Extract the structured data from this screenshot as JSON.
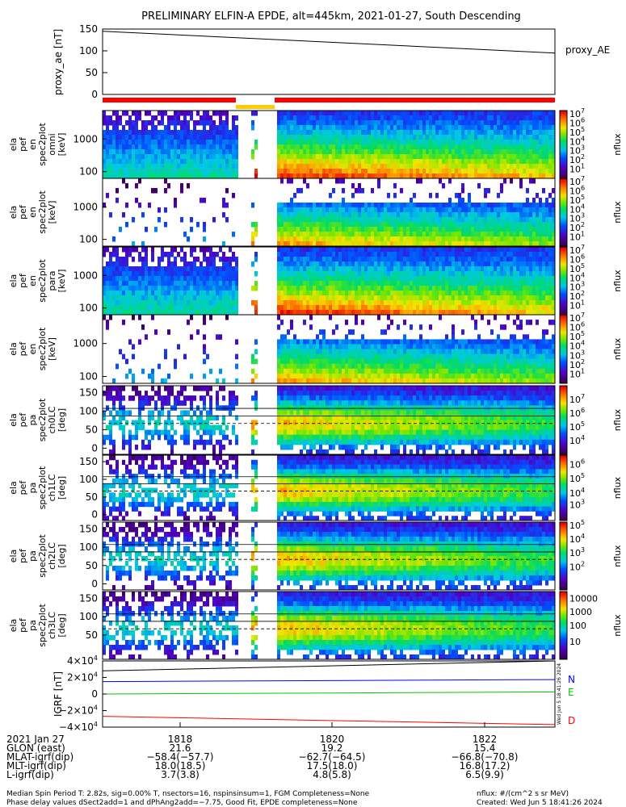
{
  "title": "PRELIMINARY ELFIN-A EPDE, alt=445km, 2021-01-27, South Descending",
  "chart_data": [
    {
      "type": "line",
      "ylabel": "proxy_ae [nT]",
      "yticks": [
        "150",
        "100",
        "50",
        "0"
      ],
      "ylim": [
        0,
        150
      ],
      "series": [
        {
          "name": "proxy_AE",
          "x": [
            0,
            1
          ],
          "values": [
            145,
            95
          ]
        }
      ]
    },
    {
      "type": "heatmap",
      "ylabel_lines": [
        "ela",
        "pef",
        "en",
        "spec2plot",
        "omni",
        "[keV]"
      ],
      "yticks": [
        "1000",
        "100"
      ],
      "colorbar": {
        "label": "nflux",
        "ticks": [
          {
            "b": "10",
            "e": "7"
          },
          {
            "b": "10",
            "e": "6"
          },
          {
            "b": "10",
            "e": "5"
          },
          {
            "b": "10",
            "e": "4"
          },
          {
            "b": "10",
            "e": "3"
          },
          {
            "b": "10",
            "e": "2"
          },
          {
            "b": "10",
            "e": "1"
          }
        ]
      }
    },
    {
      "type": "heatmap",
      "ylabel_lines": [
        "ela",
        "pef",
        "en",
        "spec2plot",
        "[keV]"
      ],
      "yticks": [
        "1000",
        "100"
      ],
      "colorbar": {
        "label": "nflux",
        "ticks": [
          {
            "b": "10",
            "e": "7"
          },
          {
            "b": "10",
            "e": "6"
          },
          {
            "b": "10",
            "e": "5"
          },
          {
            "b": "10",
            "e": "4"
          },
          {
            "b": "10",
            "e": "3"
          },
          {
            "b": "10",
            "e": "2"
          },
          {
            "b": "10",
            "e": "1"
          }
        ]
      }
    },
    {
      "type": "heatmap",
      "ylabel_lines": [
        "ela",
        "pef",
        "en",
        "spec2plot",
        "para",
        "[keV]"
      ],
      "yticks": [
        "1000",
        "100"
      ],
      "colorbar": {
        "label": "nflux",
        "ticks": [
          {
            "b": "10",
            "e": "7"
          },
          {
            "b": "10",
            "e": "6"
          },
          {
            "b": "10",
            "e": "5"
          },
          {
            "b": "10",
            "e": "4"
          },
          {
            "b": "10",
            "e": "3"
          },
          {
            "b": "10",
            "e": "2"
          },
          {
            "b": "10",
            "e": "1"
          }
        ]
      }
    },
    {
      "type": "heatmap",
      "ylabel_lines": [
        "ela",
        "pef",
        "en",
        "spec2plot",
        "[keV]"
      ],
      "yticks": [
        "1000",
        "100"
      ],
      "colorbar": {
        "label": "nflux",
        "ticks": [
          {
            "b": "10",
            "e": "7"
          },
          {
            "b": "10",
            "e": "6"
          },
          {
            "b": "10",
            "e": "5"
          },
          {
            "b": "10",
            "e": "4"
          },
          {
            "b": "10",
            "e": "3"
          },
          {
            "b": "10",
            "e": "2"
          },
          {
            "b": "10",
            "e": "1"
          }
        ]
      }
    },
    {
      "type": "heatmap",
      "ylabel_lines": [
        "ela",
        "pef",
        "pa",
        "spec2plot",
        "ch0LC",
        "[deg]"
      ],
      "yticks": [
        "150",
        "100",
        "50",
        "0"
      ],
      "colorbar": {
        "label": "nflux",
        "ticks": [
          {
            "b": "10",
            "e": "7"
          },
          {
            "b": "10",
            "e": "6"
          },
          {
            "b": "10",
            "e": "5"
          },
          {
            "b": "10",
            "e": "4"
          }
        ]
      }
    },
    {
      "type": "heatmap",
      "ylabel_lines": [
        "ela",
        "pef",
        "pa",
        "spec2plot",
        "ch1LC",
        "[deg]"
      ],
      "yticks": [
        "150",
        "100",
        "50",
        "0"
      ],
      "colorbar": {
        "label": "nflux",
        "ticks": [
          {
            "b": "10",
            "e": "6"
          },
          {
            "b": "10",
            "e": "5"
          },
          {
            "b": "10",
            "e": "4"
          },
          {
            "b": "10",
            "e": "3"
          }
        ]
      }
    },
    {
      "type": "heatmap",
      "ylabel_lines": [
        "ela",
        "pef",
        "pa",
        "spec2plot",
        "ch2LC",
        "[deg]"
      ],
      "yticks": [
        "150",
        "100",
        "50",
        "0"
      ],
      "colorbar": {
        "label": "nflux",
        "ticks": [
          {
            "b": "10",
            "e": "5"
          },
          {
            "b": "10",
            "e": "4"
          },
          {
            "b": "10",
            "e": "3"
          },
          {
            "b": "10",
            "e": "2"
          }
        ]
      }
    },
    {
      "type": "heatmap",
      "ylabel_lines": [
        "ela",
        "pef",
        "pa",
        "spec2plot",
        "ch3LC",
        "[deg]"
      ],
      "yticks": [
        "150",
        "100",
        "50"
      ],
      "colorbar": {
        "label": "nflux",
        "ticks": [
          {
            "b": "10000",
            "e": ""
          },
          {
            "b": "1000",
            "e": ""
          },
          {
            "b": "100",
            "e": ""
          },
          {
            "b": "10",
            "e": ""
          }
        ]
      }
    },
    {
      "type": "line",
      "ylabel": "IGRF [nT]",
      "yticks": [
        {
          "b": "4×10",
          "e": "4"
        },
        {
          "b": "2×10",
          "e": "4"
        },
        {
          "b": "0",
          "e": ""
        },
        {
          "b": "−2×10",
          "e": "4"
        },
        {
          "b": "−4×10",
          "e": "4"
        }
      ],
      "ylim": [
        -40000,
        40000
      ],
      "side_text": "Wed Jun  5 18:41:26 2024",
      "series": [
        {
          "name": "N",
          "color": "#0000ff",
          "x": [
            0,
            1
          ],
          "values": [
            15000,
            17500
          ]
        },
        {
          "name": "E",
          "color": "#00cc00",
          "x": [
            0,
            1
          ],
          "values": [
            0,
            2500
          ]
        },
        {
          "name": "D",
          "color": "#ff0000",
          "x": [
            0,
            1
          ],
          "values": [
            -27000,
            -37000
          ]
        },
        {
          "name": "",
          "color": "#000000",
          "x": [
            0,
            1
          ],
          "values": [
            28000,
            40000
          ]
        }
      ]
    }
  ],
  "xaxis": {
    "labels": [
      "2021 Jan 27",
      "GLON (east)",
      "MLAT-igrf(dip)",
      "MLT-igrf(dip)",
      "L-igrf(dip)"
    ],
    "columns": [
      {
        "time": "1818",
        "vals": [
          "21.6",
          "−58.4(−57.7)",
          "18.0(18.5)",
          "3.7(3.8)"
        ]
      },
      {
        "time": "1820",
        "vals": [
          "19.2",
          "−62.7(−64.5)",
          "17.5(18.0)",
          "4.8(5.8)"
        ]
      },
      {
        "time": "1822",
        "vals": [
          "15.4",
          "−66.8(−70.8)",
          "16.8(17.2)",
          "6.5(9.9)"
        ]
      }
    ]
  },
  "footer": {
    "line1": "Median Spin Period T: 2.82s, sig=0.00% T, nsectors=16, nspinsinsum=1, FGM Completeness=None",
    "line2": "Phase delay values dSect2add=1 and dPhAng2add=−7.75, Good Fit, EPDE completeness=None",
    "right1": "nflux: #/(cm^2 s sr MeV)",
    "right2": "Created: Wed Jun  5 18:41:26 2024"
  },
  "colors": {
    "red": "#ff0000",
    "orange": "#ff6600",
    "yellow": "#ffcc00"
  }
}
